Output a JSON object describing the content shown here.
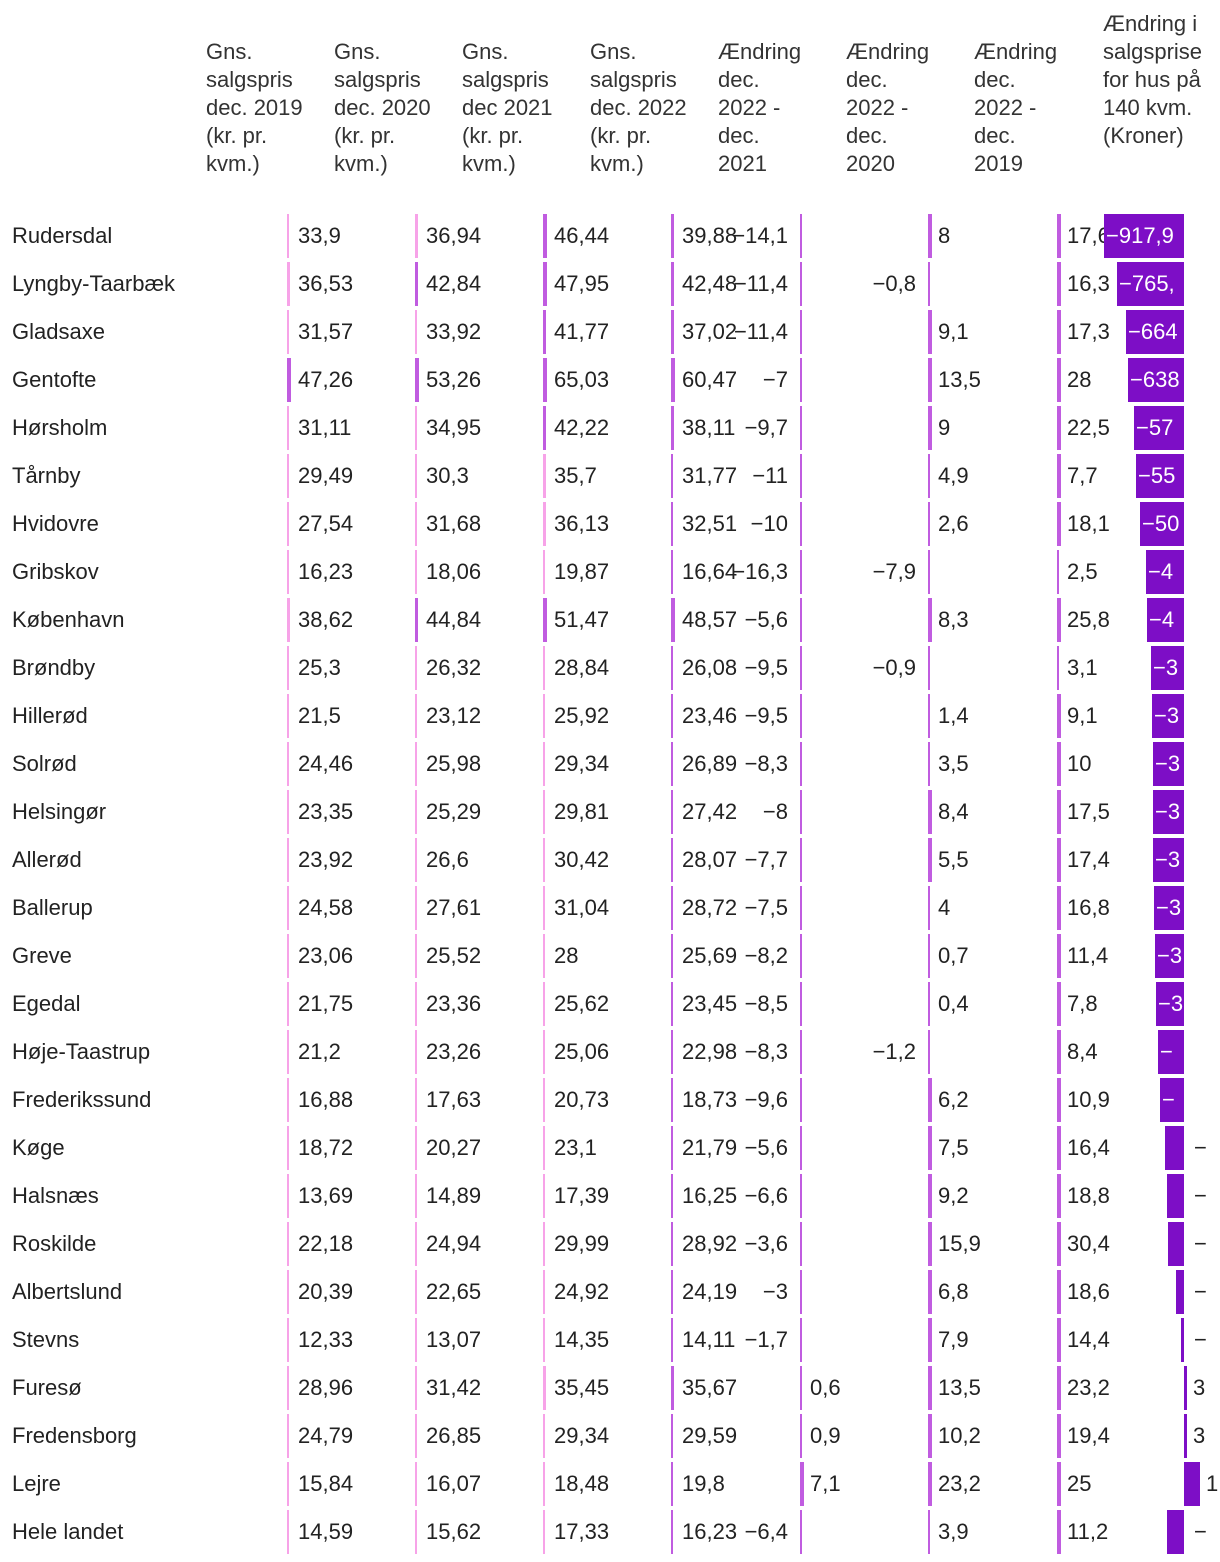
{
  "chart_data": {
    "type": "table",
    "columns": [
      "Gns. salgspris dec. 2019 (kr. pr. kvm.)",
      "Gns. salgspris dec. 2020 (kr. pr. kvm.)",
      "Gns. salgspris dec 2021 (kr. pr. kvm.)",
      "Gns. salgspris dec. 2022 (kr. pr. kvm.)",
      "Ændring dec. 2022 - dec. 2021",
      "Ændring dec. 2022 - dec. 2020",
      "Ændring dec. 2022 - dec. 2019",
      "Ændring i salgsprise for hus på 140 kvm. (Kroner)"
    ],
    "rows": [
      {
        "name": "Rudersdal",
        "p2019": "33,9",
        "p2020": "36,94",
        "p2021": "46,44",
        "p2022": "39,88",
        "c21": "−14,1",
        "c20": "8",
        "c19": "17,6",
        "hus": "−917,9"
      },
      {
        "name": "Lyngby-Taarbæk",
        "p2019": "36,53",
        "p2020": "42,84",
        "p2021": "47,95",
        "p2022": "42,48",
        "c21": "−11,4",
        "c20": "−0,8",
        "c19": "16,3",
        "hus": "−765,"
      },
      {
        "name": "Gladsaxe",
        "p2019": "31,57",
        "p2020": "33,92",
        "p2021": "41,77",
        "p2022": "37,02",
        "c21": "−11,4",
        "c20": "9,1",
        "c19": "17,3",
        "hus": "−664"
      },
      {
        "name": "Gentofte",
        "p2019": "47,26",
        "p2020": "53,26",
        "p2021": "65,03",
        "p2022": "60,47",
        "c21": "−7",
        "c20": "13,5",
        "c19": "28",
        "hus": "−638"
      },
      {
        "name": "Hørsholm",
        "p2019": "31,11",
        "p2020": "34,95",
        "p2021": "42,22",
        "p2022": "38,11",
        "c21": "−9,7",
        "c20": "9",
        "c19": "22,5",
        "hus": "−57"
      },
      {
        "name": "Tårnby",
        "p2019": "29,49",
        "p2020": "30,3",
        "p2021": "35,7",
        "p2022": "31,77",
        "c21": "−11",
        "c20": "4,9",
        "c19": "7,7",
        "hus": "−55"
      },
      {
        "name": "Hvidovre",
        "p2019": "27,54",
        "p2020": "31,68",
        "p2021": "36,13",
        "p2022": "32,51",
        "c21": "−10",
        "c20": "2,6",
        "c19": "18,1",
        "hus": "−50"
      },
      {
        "name": "Gribskov",
        "p2019": "16,23",
        "p2020": "18,06",
        "p2021": "19,87",
        "p2022": "16,64",
        "c21": "−16,3",
        "c20": "−7,9",
        "c19": "2,5",
        "hus": "−4"
      },
      {
        "name": "København",
        "p2019": "38,62",
        "p2020": "44,84",
        "p2021": "51,47",
        "p2022": "48,57",
        "c21": "−5,6",
        "c20": "8,3",
        "c19": "25,8",
        "hus": "−4"
      },
      {
        "name": "Brøndby",
        "p2019": "25,3",
        "p2020": "26,32",
        "p2021": "28,84",
        "p2022": "26,08",
        "c21": "−9,5",
        "c20": "−0,9",
        "c19": "3,1",
        "hus": "−3"
      },
      {
        "name": "Hillerød",
        "p2019": "21,5",
        "p2020": "23,12",
        "p2021": "25,92",
        "p2022": "23,46",
        "c21": "−9,5",
        "c20": "1,4",
        "c19": "9,1",
        "hus": "−3"
      },
      {
        "name": "Solrød",
        "p2019": "24,46",
        "p2020": "25,98",
        "p2021": "29,34",
        "p2022": "26,89",
        "c21": "−8,3",
        "c20": "3,5",
        "c19": "10",
        "hus": "−3"
      },
      {
        "name": "Helsingør",
        "p2019": "23,35",
        "p2020": "25,29",
        "p2021": "29,81",
        "p2022": "27,42",
        "c21": "−8",
        "c20": "8,4",
        "c19": "17,5",
        "hus": "−3"
      },
      {
        "name": "Allerød",
        "p2019": "23,92",
        "p2020": "26,6",
        "p2021": "30,42",
        "p2022": "28,07",
        "c21": "−7,7",
        "c20": "5,5",
        "c19": "17,4",
        "hus": "−3"
      },
      {
        "name": "Ballerup",
        "p2019": "24,58",
        "p2020": "27,61",
        "p2021": "31,04",
        "p2022": "28,72",
        "c21": "−7,5",
        "c20": "4",
        "c19": "16,8",
        "hus": "−3"
      },
      {
        "name": "Greve",
        "p2019": "23,06",
        "p2020": "25,52",
        "p2021": "28",
        "p2022": "25,69",
        "c21": "−8,2",
        "c20": "0,7",
        "c19": "11,4",
        "hus": "−3"
      },
      {
        "name": "Egedal",
        "p2019": "21,75",
        "p2020": "23,36",
        "p2021": "25,62",
        "p2022": "23,45",
        "c21": "−8,5",
        "c20": "0,4",
        "c19": "7,8",
        "hus": "−3"
      },
      {
        "name": "Høje-Taastrup",
        "p2019": "21,2",
        "p2020": "23,26",
        "p2021": "25,06",
        "p2022": "22,98",
        "c21": "−8,3",
        "c20": "−1,2",
        "c19": "8,4",
        "hus": "−"
      },
      {
        "name": "Frederikssund",
        "p2019": "16,88",
        "p2020": "17,63",
        "p2021": "20,73",
        "p2022": "18,73",
        "c21": "−9,6",
        "c20": "6,2",
        "c19": "10,9",
        "hus": "−"
      },
      {
        "name": "Køge",
        "p2019": "18,72",
        "p2020": "20,27",
        "p2021": "23,1",
        "p2022": "21,79",
        "c21": "−5,6",
        "c20": "7,5",
        "c19": "16,4",
        "hus": "−"
      },
      {
        "name": "Halsnæs",
        "p2019": "13,69",
        "p2020": "14,89",
        "p2021": "17,39",
        "p2022": "16,25",
        "c21": "−6,6",
        "c20": "9,2",
        "c19": "18,8",
        "hus": "−"
      },
      {
        "name": "Roskilde",
        "p2019": "22,18",
        "p2020": "24,94",
        "p2021": "29,99",
        "p2022": "28,92",
        "c21": "−3,6",
        "c20": "15,9",
        "c19": "30,4",
        "hus": "−"
      },
      {
        "name": "Albertslund",
        "p2019": "20,39",
        "p2020": "22,65",
        "p2021": "24,92",
        "p2022": "24,19",
        "c21": "−3",
        "c20": "6,8",
        "c19": "18,6",
        "hus": "−"
      },
      {
        "name": "Stevns",
        "p2019": "12,33",
        "p2020": "13,07",
        "p2021": "14,35",
        "p2022": "14,11",
        "c21": "−1,7",
        "c20": "7,9",
        "c19": "14,4",
        "hus": "−"
      },
      {
        "name": "Furesø",
        "p2019": "28,96",
        "p2020": "31,42",
        "p2021": "35,45",
        "p2022": "35,67",
        "c21": "0,6",
        "c20": "13,5",
        "c19": "23,2",
        "hus": "3"
      },
      {
        "name": "Fredensborg",
        "p2019": "24,79",
        "p2020": "26,85",
        "p2021": "29,34",
        "p2022": "29,59",
        "c21": "0,9",
        "c20": "10,2",
        "c19": "19,4",
        "hus": "3"
      },
      {
        "name": "Lejre",
        "p2019": "15,84",
        "p2020": "16,07",
        "p2021": "18,48",
        "p2022": "19,8",
        "c21": "7,1",
        "c20": "23,2",
        "c19": "25",
        "hus": "1"
      },
      {
        "name": "Hele landet",
        "p2019": "14,59",
        "p2020": "15,62",
        "p2021": "17,33",
        "p2022": "16,23",
        "c21": "−6,4",
        "c20": "3,9",
        "c19": "11,2",
        "hus": "−"
      }
    ],
    "colors": {
      "light": "#f7a3e8",
      "mid": "#c05ce0",
      "dark": "#7d0ec6"
    }
  }
}
